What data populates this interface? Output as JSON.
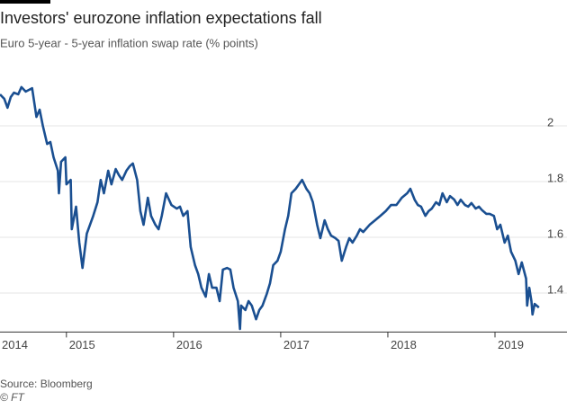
{
  "chart_data": {
    "type": "line",
    "title": "Investors' eurozone inflation expectations fall",
    "subtitle": "Euro 5-year - 5-year inflation swap rate (% points)",
    "source": "Source: Bloomberg",
    "credit": "© FT",
    "xlim": [
      2014.38,
      2019.42
    ],
    "xticks": [
      2014,
      2015,
      2016,
      2017,
      2018,
      2019
    ],
    "ylim": [
      1.26,
      2.18
    ],
    "yticks": [
      {
        "value": 1.4,
        "label": "1.4"
      },
      {
        "value": 1.6,
        "label": "1.6"
      },
      {
        "value": 1.8,
        "label": "1.8"
      },
      2
    ],
    "grid": true,
    "series": [
      {
        "color": "#1a4f91",
        "x": [
          2014.38,
          2014.42,
          2014.45,
          2014.48,
          2014.51,
          2014.55,
          2014.58,
          2014.62,
          2014.65,
          2014.68,
          2014.72,
          2014.75,
          2014.78,
          2014.82,
          2014.85,
          2014.88,
          2014.92,
          2014.93,
          2014.95,
          2014.99,
          2015.0,
          2015.04,
          2015.05,
          2015.09,
          2015.12,
          2015.15,
          2015.19,
          2015.22,
          2015.25,
          2015.29,
          2015.32,
          2015.35,
          2015.39,
          2015.42,
          2015.46,
          2015.49,
          2015.52,
          2015.56,
          2015.59,
          2015.62,
          2015.66,
          2015.69,
          2015.72,
          2015.76,
          2015.79,
          2015.83,
          2015.86,
          2015.89,
          2015.93,
          2015.98,
          2016.03,
          2016.06,
          2016.09,
          2016.13,
          2016.16,
          2016.2,
          2016.23,
          2016.26,
          2016.3,
          2016.33,
          2016.36,
          2016.4,
          2016.43,
          2016.46,
          2016.5,
          2016.53,
          2016.56,
          2016.6,
          2016.62,
          2016.63,
          2016.67,
          2016.7,
          2016.73,
          2016.77,
          2016.8,
          2016.83,
          2016.87,
          2016.9,
          2016.93,
          2016.97,
          2017.0,
          2017.04,
          2017.07,
          2017.1,
          2017.14,
          2017.17,
          2017.2,
          2017.24,
          2017.27,
          2017.3,
          2017.34,
          2017.37,
          2017.41,
          2017.44,
          2017.47,
          2017.51,
          2017.54,
          2017.57,
          2017.61,
          2017.64,
          2017.67,
          2017.71,
          2017.74,
          2017.77,
          2017.83,
          2017.88,
          2017.93,
          2017.98,
          2018.03,
          2018.08,
          2018.13,
          2018.18,
          2018.21,
          2018.25,
          2018.28,
          2018.31,
          2018.35,
          2018.38,
          2018.41,
          2018.45,
          2018.48,
          2018.51,
          2018.55,
          2018.58,
          2018.62,
          2018.65,
          2018.68,
          2018.72,
          2018.75,
          2018.78,
          2018.82,
          2018.85,
          2018.88,
          2018.92,
          2018.95,
          2018.99,
          2019.02,
          2019.05,
          2019.09,
          2019.12,
          2019.15,
          2019.19,
          2019.22,
          2019.25,
          2019.29,
          2019.3,
          2019.32,
          2019.34,
          2019.35,
          2019.37,
          2019.41
        ],
        "values": [
          2.113,
          2.097,
          2.065,
          2.103,
          2.119,
          2.113,
          2.139,
          2.123,
          2.129,
          2.135,
          2.032,
          2.058,
          2.0,
          1.935,
          1.942,
          1.887,
          1.839,
          1.758,
          1.871,
          1.887,
          1.79,
          1.806,
          1.629,
          1.71,
          1.581,
          1.49,
          1.613,
          1.645,
          1.677,
          1.726,
          1.806,
          1.758,
          1.839,
          1.79,
          1.845,
          1.823,
          1.806,
          1.839,
          1.855,
          1.865,
          1.806,
          1.694,
          1.645,
          1.742,
          1.677,
          1.645,
          1.629,
          1.677,
          1.758,
          1.716,
          1.703,
          1.71,
          1.677,
          1.694,
          1.565,
          1.5,
          1.468,
          1.419,
          1.387,
          1.468,
          1.419,
          1.419,
          1.371,
          1.484,
          1.49,
          1.484,
          1.419,
          1.371,
          1.271,
          1.355,
          1.339,
          1.371,
          1.355,
          1.306,
          1.339,
          1.355,
          1.397,
          1.435,
          1.5,
          1.516,
          1.548,
          1.629,
          1.677,
          1.758,
          1.774,
          1.79,
          1.806,
          1.774,
          1.758,
          1.726,
          1.645,
          1.597,
          1.661,
          1.629,
          1.606,
          1.597,
          1.587,
          1.516,
          1.565,
          1.597,
          1.581,
          1.606,
          1.629,
          1.619,
          1.645,
          1.661,
          1.677,
          1.694,
          1.716,
          1.716,
          1.742,
          1.758,
          1.774,
          1.735,
          1.716,
          1.71,
          1.677,
          1.694,
          1.703,
          1.726,
          1.716,
          1.758,
          1.726,
          1.748,
          1.735,
          1.716,
          1.735,
          1.716,
          1.71,
          1.723,
          1.703,
          1.71,
          1.697,
          1.684,
          1.684,
          1.677,
          1.629,
          1.645,
          1.581,
          1.606,
          1.548,
          1.516,
          1.468,
          1.51,
          1.452,
          1.355,
          1.419,
          1.371,
          1.323,
          1.361,
          1.348
        ]
      }
    ]
  }
}
